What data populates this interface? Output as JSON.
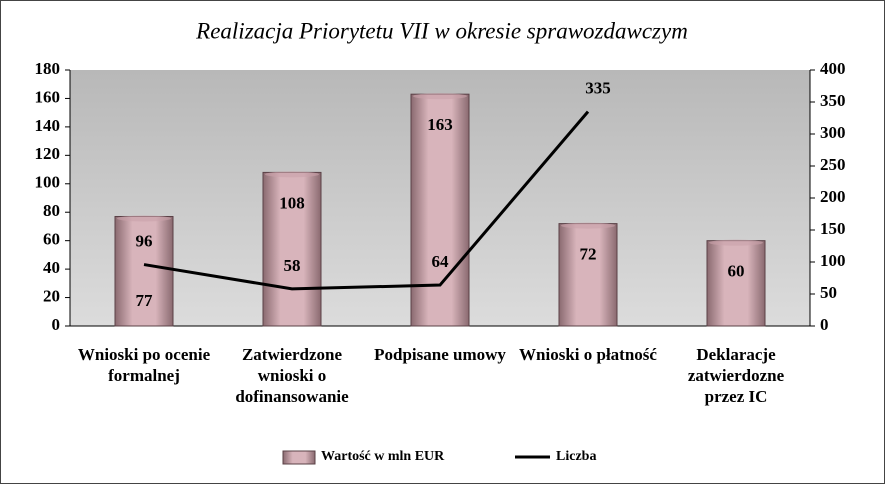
{
  "chart_data": {
    "type": "bar_line",
    "title": "Realizacja Priorytetu VII w okresie sprawozdawczym",
    "categories": [
      "Wnioski po ocenie formalnej",
      "Zatwierdzone wnioski o dofinansowanie",
      "Podpisane umowy",
      "Wnioski o płatność",
      "Deklaracje zatwierdozne przez IC"
    ],
    "series": [
      {
        "name": "Wartość w mln EUR",
        "type": "bar",
        "color": "#c9a2aa",
        "values": [
          77,
          108,
          163,
          72,
          60
        ]
      },
      {
        "name": "Liczba",
        "type": "line",
        "color": "#000000",
        "axis": "y2",
        "values": [
          96,
          58,
          64,
          335,
          null
        ]
      }
    ],
    "ylim": [
      0,
      180
    ],
    "yticks": [
      0,
      20,
      40,
      60,
      80,
      100,
      120,
      140,
      160,
      180
    ],
    "y2lim": [
      0,
      400
    ],
    "y2ticks": [
      0,
      50,
      100,
      150,
      200,
      250,
      300,
      350,
      400
    ],
    "legend": "bottom"
  }
}
